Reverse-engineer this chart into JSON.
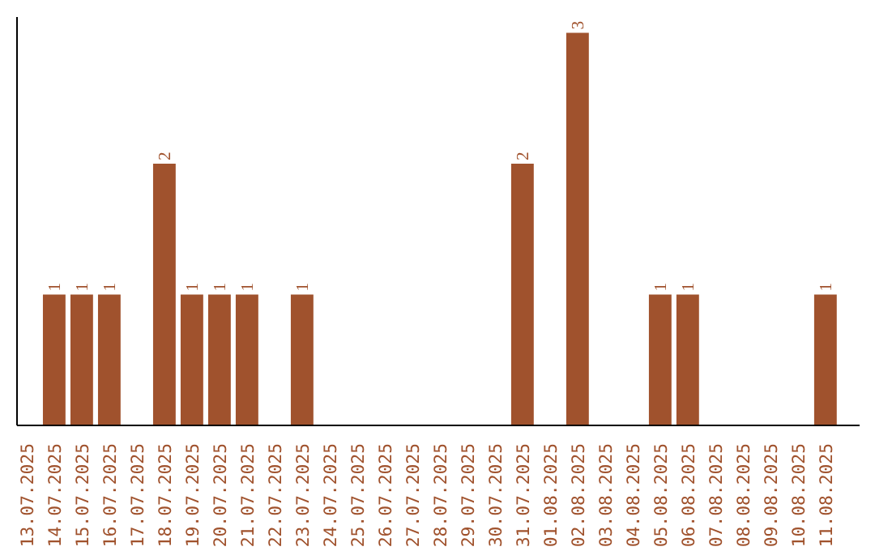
{
  "chart_data": {
    "type": "bar",
    "categories": [
      "13.07.2025",
      "14.07.2025",
      "15.07.2025",
      "16.07.2025",
      "17.07.2025",
      "18.07.2025",
      "19.07.2025",
      "20.07.2025",
      "21.07.2025",
      "22.07.2025",
      "23.07.2025",
      "24.07.2025",
      "25.07.2025",
      "26.07.2025",
      "27.07.2025",
      "28.07.2025",
      "29.07.2025",
      "30.07.2025",
      "31.07.2025",
      "01.08.2025",
      "02.08.2025",
      "03.08.2025",
      "04.08.2025",
      "05.08.2025",
      "06.08.2025",
      "07.08.2025",
      "08.08.2025",
      "09.08.2025",
      "10.08.2025",
      "11.08.2025"
    ],
    "values": [
      0,
      1,
      1,
      1,
      0,
      2,
      1,
      1,
      1,
      0,
      1,
      0,
      0,
      0,
      0,
      0,
      0,
      0,
      2,
      0,
      3,
      0,
      0,
      1,
      1,
      0,
      0,
      0,
      0,
      1
    ],
    "value_labels": [
      null,
      "1",
      "1",
      "1",
      null,
      "2",
      "1",
      "1",
      "1",
      null,
      "1",
      null,
      null,
      null,
      null,
      null,
      null,
      null,
      "2",
      null,
      "3",
      null,
      null,
      "1",
      "1",
      null,
      null,
      null,
      null,
      "1"
    ],
    "color": "#a0522d",
    "grid": false
  }
}
